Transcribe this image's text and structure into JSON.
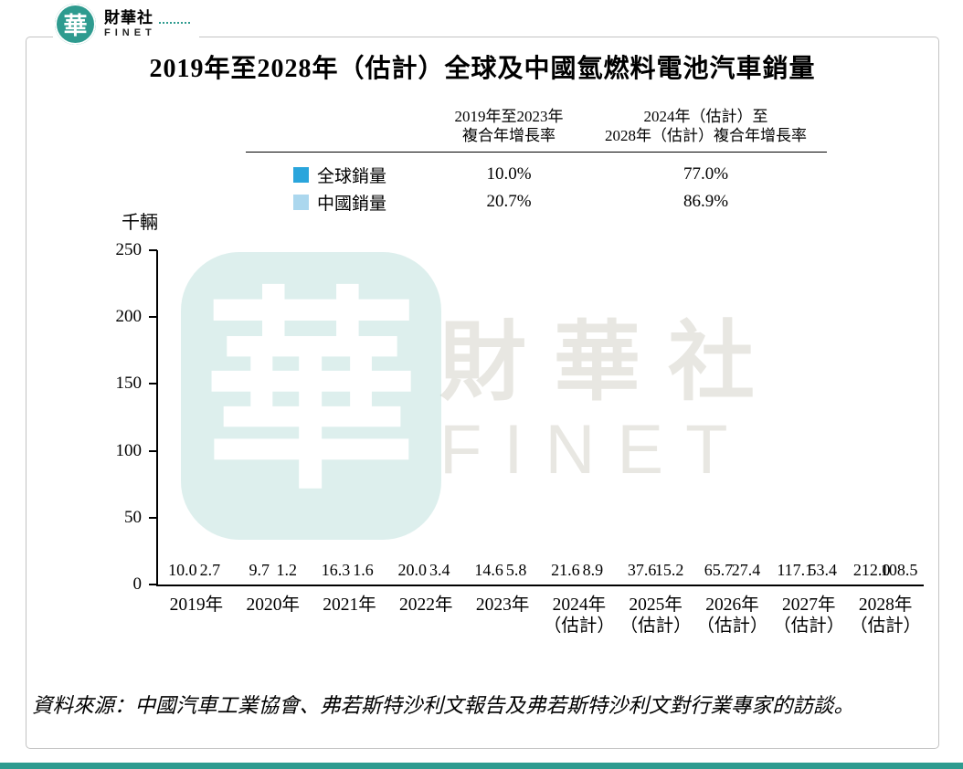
{
  "brand": {
    "logo_char": "華",
    "name": "財華社",
    "name_en": "FINET"
  },
  "title": "2019年至2028年（估計）全球及中國氫燃料電池汽車銷量",
  "legend_table": {
    "col1_header_line1": "2019年至2023年",
    "col1_header_line2": "複合年增長率",
    "col2_header_line1": "2024年（估計）至",
    "col2_header_line2": "2028年（估計）複合年增長率",
    "rows": [
      {
        "label": "全球銷量",
        "cagr1": "10.0%",
        "cagr2": "77.0%"
      },
      {
        "label": "中國銷量",
        "cagr1": "20.7%",
        "cagr2": "86.9%"
      }
    ]
  },
  "chart_data": {
    "type": "bar",
    "title": "2019年至2028年（估計）全球及中國氫燃料電池汽車銷量",
    "unit_label": "千輛",
    "categories": [
      {
        "line1": "2019年",
        "line2": ""
      },
      {
        "line1": "2020年",
        "line2": ""
      },
      {
        "line1": "2021年",
        "line2": ""
      },
      {
        "line1": "2022年",
        "line2": ""
      },
      {
        "line1": "2023年",
        "line2": ""
      },
      {
        "line1": "2024年",
        "line2": "（估計）"
      },
      {
        "line1": "2025年",
        "line2": "（估計）"
      },
      {
        "line1": "2026年",
        "line2": "（估計）"
      },
      {
        "line1": "2027年",
        "line2": "（估計）"
      },
      {
        "line1": "2028年",
        "line2": "（估計）"
      }
    ],
    "series": [
      {
        "key": "global",
        "name": "全球銷量",
        "color": "#2AA5DC",
        "values": [
          10.0,
          9.7,
          16.3,
          20.0,
          14.6,
          21.6,
          37.6,
          65.7,
          117.1,
          212.0
        ],
        "cagr_2019_2023": "10.0%",
        "cagr_2024_2028": "77.0%"
      },
      {
        "key": "china",
        "name": "中國銷量",
        "color": "#ABD7EE",
        "values": [
          2.7,
          1.2,
          1.6,
          3.4,
          5.8,
          8.9,
          15.2,
          27.4,
          53.4,
          108.5
        ],
        "cagr_2019_2023": "20.7%",
        "cagr_2024_2028": "86.9%"
      }
    ],
    "ylim": [
      0,
      250
    ],
    "yticks": [
      0,
      50,
      100,
      150,
      200,
      250
    ],
    "grid": false,
    "legend_position": "top-table"
  },
  "watermark": {
    "seal_char": "華",
    "text_cn": "財華社",
    "text_en": "FINET"
  },
  "source": "資料來源：中國汽車工業協會、弗若斯特沙利文報告及弗若斯特沙利文對行業專家的訪談。",
  "colors": {
    "global_bar": "#2AA5DC",
    "china_bar": "#ABD7EE",
    "brand_teal": "#2E9B8F",
    "axis": "#000000",
    "card_border": "#c3c3c3"
  }
}
